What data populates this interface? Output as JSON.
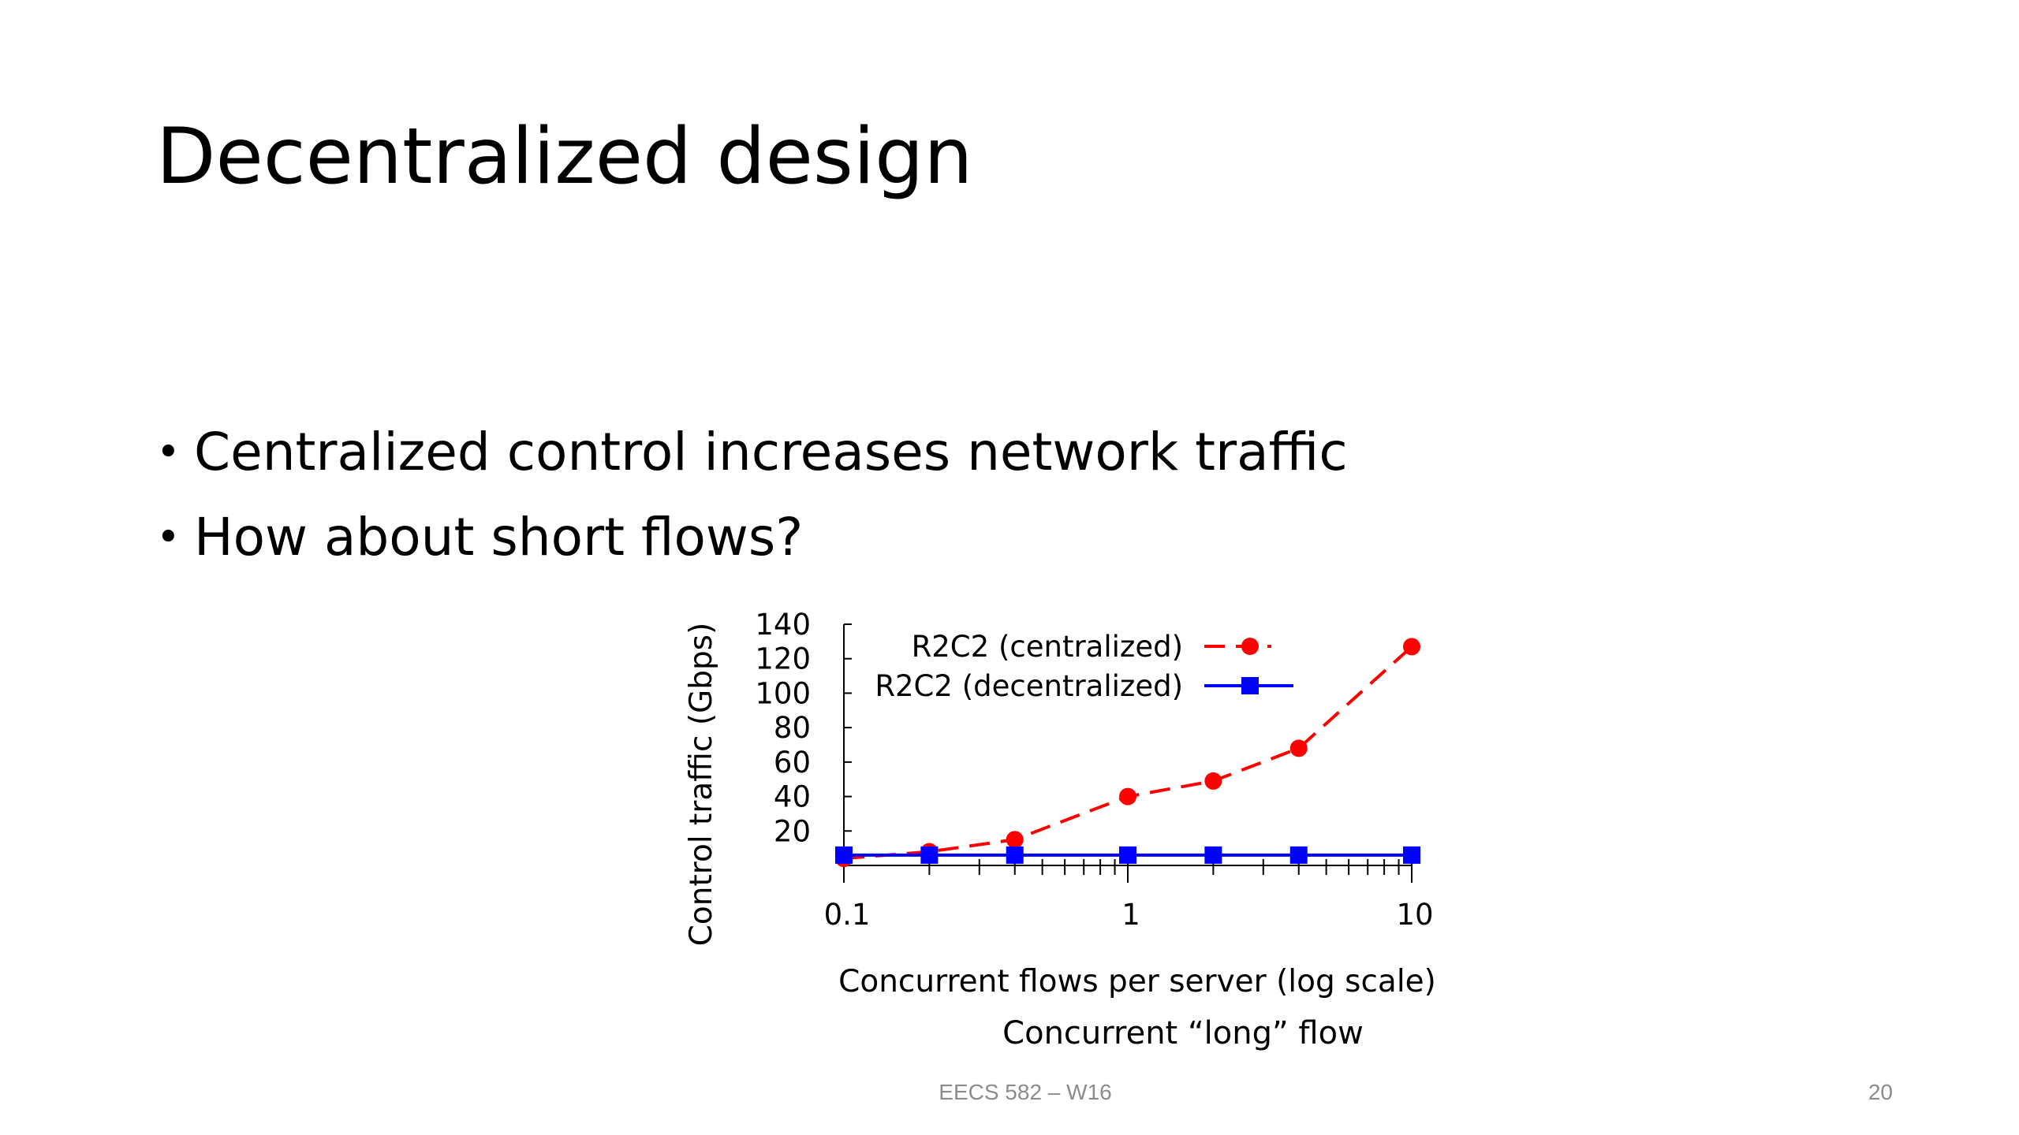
{
  "slide": {
    "title": "Decentralized design",
    "bullets": [
      "Centralized control increases network traffic",
      "How about short flows?"
    ],
    "caption": "Concurrent “long” flow",
    "footer": "EECS 582 – W16",
    "page_number": "20"
  },
  "chart_data": {
    "type": "line",
    "xlabel": "Concurrent flows per server (log scale)",
    "ylabel": "Control traffic (Gbps)",
    "x_scale": "log",
    "xlim": [
      0.1,
      10
    ],
    "ylim": [
      0,
      140
    ],
    "x_ticks": [
      0.1,
      1,
      10
    ],
    "x_tick_labels": [
      "0.1",
      "1",
      "10"
    ],
    "y_ticks": [
      20,
      40,
      60,
      80,
      100,
      120,
      140
    ],
    "y_tick_labels": [
      "20",
      "40",
      "60",
      "80",
      "100",
      "120",
      "140"
    ],
    "legend_position": "top-left",
    "series": [
      {
        "name": "R2C2 (centralized)",
        "color": "#ff0000",
        "line_style": "dashed",
        "marker": "circle",
        "x": [
          0.1,
          0.2,
          0.4,
          1,
          2,
          4,
          10
        ],
        "y": [
          4,
          8,
          15,
          40,
          49,
          68,
          127
        ]
      },
      {
        "name": "R2C2 (decentralized)",
        "color": "#0000ff",
        "line_style": "solid",
        "marker": "square",
        "x": [
          0.1,
          0.2,
          0.4,
          1,
          2,
          4,
          10
        ],
        "y": [
          6,
          6,
          6,
          6,
          6,
          6,
          6
        ]
      }
    ]
  }
}
